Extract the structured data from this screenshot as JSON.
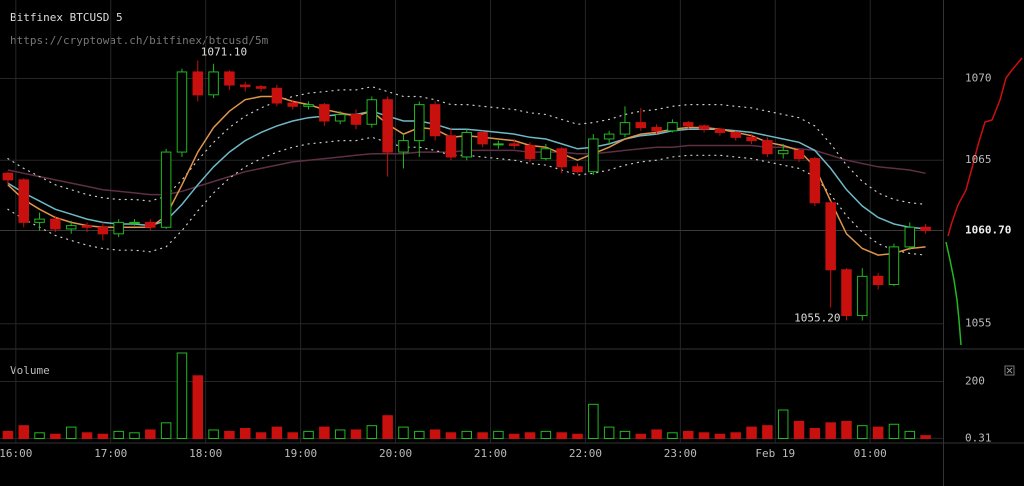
{
  "chart_data": {
    "type": "candlestick",
    "title": "Bitfinex BTCUSD 5",
    "subtitle": "https://cryptowat.ch/bitfinex/btcusd/5m",
    "x": [
      "15:55",
      "16:05",
      "16:15",
      "16:25",
      "16:35",
      "16:45",
      "16:55",
      "17:05",
      "17:15",
      "17:25",
      "17:35",
      "17:45",
      "17:55",
      "18:05",
      "18:15",
      "18:25",
      "18:35",
      "18:45",
      "18:55",
      "19:05",
      "19:15",
      "19:25",
      "19:35",
      "19:45",
      "19:55",
      "20:05",
      "20:15",
      "20:25",
      "20:35",
      "20:45",
      "20:55",
      "21:05",
      "21:15",
      "21:25",
      "21:35",
      "21:45",
      "21:55",
      "22:05",
      "22:15",
      "22:25",
      "22:35",
      "22:45",
      "22:55",
      "23:05",
      "23:15",
      "23:25",
      "23:35",
      "23:45",
      "23:55",
      "00:05",
      "00:15",
      "00:25",
      "00:35",
      "00:45",
      "00:55",
      "01:05",
      "01:15",
      "01:25",
      "01:35"
    ],
    "open": [
      1064.2,
      1063.8,
      1061.2,
      1061.4,
      1060.8,
      1061.0,
      1060.9,
      1060.5,
      1061.2,
      1061.2,
      1060.9,
      1065.5,
      1070.4,
      1069.0,
      1070.4,
      1069.6,
      1069.5,
      1069.4,
      1068.5,
      1068.3,
      1068.4,
      1067.4,
      1067.8,
      1067.2,
      1068.7,
      1065.5,
      1066.2,
      1068.4,
      1066.5,
      1065.2,
      1066.7,
      1066.0,
      1066.0,
      1065.9,
      1065.1,
      1065.7,
      1064.6,
      1064.3,
      1066.3,
      1066.6,
      1067.3,
      1067.0,
      1066.8,
      1067.3,
      1067.1,
      1066.9,
      1066.7,
      1066.4,
      1066.2,
      1065.4,
      1065.6,
      1065.1,
      1062.4,
      1058.3,
      1055.5,
      1057.9,
      1057.4,
      1059.7,
      1060.9
    ],
    "high": [
      1064.3,
      1063.9,
      1061.8,
      1061.6,
      1061.3,
      1061.2,
      1061.2,
      1061.4,
      1061.4,
      1061.4,
      1065.7,
      1070.6,
      1071.1,
      1070.9,
      1070.5,
      1069.8,
      1069.6,
      1069.6,
      1068.7,
      1068.6,
      1068.5,
      1068.0,
      1068.1,
      1068.9,
      1068.9,
      1066.6,
      1068.6,
      1068.6,
      1067.0,
      1066.9,
      1066.8,
      1066.2,
      1066.3,
      1066.1,
      1066.0,
      1065.8,
      1064.8,
      1066.6,
      1066.8,
      1068.3,
      1068.2,
      1067.2,
      1067.5,
      1067.4,
      1067.2,
      1067.0,
      1066.8,
      1066.6,
      1066.4,
      1066.0,
      1065.7,
      1065.2,
      1062.5,
      1058.4,
      1058.4,
      1058.1,
      1059.9,
      1061.2,
      1061.1
    ],
    "low": [
      1063.5,
      1060.9,
      1060.7,
      1060.6,
      1060.5,
      1060.6,
      1060.1,
      1060.3,
      1061.0,
      1060.7,
      1060.8,
      1065.2,
      1068.6,
      1068.8,
      1069.3,
      1069.2,
      1069.2,
      1068.3,
      1068.1,
      1068.1,
      1067.1,
      1067.2,
      1066.9,
      1067.0,
      1064.0,
      1064.5,
      1065.2,
      1066.2,
      1065.0,
      1065.0,
      1065.8,
      1065.7,
      1065.7,
      1064.9,
      1065.0,
      1064.2,
      1064.2,
      1064.1,
      1066.0,
      1066.4,
      1066.8,
      1066.6,
      1066.7,
      1066.9,
      1066.7,
      1066.5,
      1066.2,
      1066.0,
      1065.2,
      1065.1,
      1064.9,
      1062.2,
      1056.0,
      1055.2,
      1055.2,
      1057.1,
      1057.3,
      1059.5,
      1060.5
    ],
    "close": [
      1063.8,
      1061.2,
      1061.4,
      1060.8,
      1061.0,
      1060.9,
      1060.5,
      1061.2,
      1061.2,
      1060.9,
      1065.5,
      1070.4,
      1069.0,
      1070.4,
      1069.6,
      1069.5,
      1069.4,
      1068.5,
      1068.3,
      1068.4,
      1067.4,
      1067.8,
      1067.2,
      1068.7,
      1065.5,
      1066.2,
      1068.4,
      1066.5,
      1065.2,
      1066.7,
      1066.0,
      1066.0,
      1065.9,
      1065.1,
      1065.7,
      1064.6,
      1064.3,
      1066.3,
      1066.6,
      1067.3,
      1067.0,
      1066.8,
      1067.3,
      1067.1,
      1066.9,
      1066.7,
      1066.4,
      1066.2,
      1065.4,
      1065.6,
      1065.1,
      1062.4,
      1058.3,
      1055.5,
      1057.9,
      1057.4,
      1059.7,
      1060.9,
      1060.7
    ],
    "up_color": "#22b822",
    "down_color": "#c8110f",
    "indicators": [
      {
        "color": "#5e2f45",
        "style": "solid",
        "values": [
          1064.4,
          1064.2,
          1064.0,
          1063.8,
          1063.6,
          1063.4,
          1063.2,
          1063.1,
          1063.0,
          1062.9,
          1062.9,
          1063.1,
          1063.4,
          1063.7,
          1064.0,
          1064.3,
          1064.5,
          1064.7,
          1064.9,
          1065.0,
          1065.1,
          1065.2,
          1065.3,
          1065.4,
          1065.4,
          1065.4,
          1065.5,
          1065.5,
          1065.5,
          1065.6,
          1065.6,
          1065.6,
          1065.6,
          1065.5,
          1065.5,
          1065.5,
          1065.4,
          1065.4,
          1065.5,
          1065.6,
          1065.7,
          1065.8,
          1065.8,
          1065.9,
          1065.9,
          1065.9,
          1065.9,
          1065.9,
          1065.8,
          1065.8,
          1065.7,
          1065.6,
          1065.3,
          1065.0,
          1064.8,
          1064.6,
          1064.5,
          1064.4,
          1064.2
        ]
      },
      {
        "color": "#cccccc",
        "style": "dotted",
        "values": [
          1065.1,
          1064.5,
          1064.0,
          1063.5,
          1063.2,
          1062.9,
          1062.7,
          1062.6,
          1062.6,
          1062.5,
          1062.8,
          1063.8,
          1065.0,
          1066.1,
          1067.0,
          1067.7,
          1068.2,
          1068.6,
          1068.9,
          1069.1,
          1069.2,
          1069.3,
          1069.3,
          1069.5,
          1069.2,
          1068.9,
          1068.9,
          1068.7,
          1068.4,
          1068.4,
          1068.3,
          1068.2,
          1068.1,
          1067.9,
          1067.8,
          1067.5,
          1067.2,
          1067.3,
          1067.5,
          1067.8,
          1068.0,
          1068.1,
          1068.3,
          1068.4,
          1068.4,
          1068.4,
          1068.3,
          1068.2,
          1068.0,
          1067.8,
          1067.6,
          1067.1,
          1066.0,
          1064.7,
          1063.7,
          1063.0,
          1062.6,
          1062.4,
          1062.3
        ]
      },
      {
        "color": "#cccccc",
        "style": "dotted",
        "values": [
          1062.0,
          1061.4,
          1060.9,
          1060.4,
          1060.1,
          1059.8,
          1059.6,
          1059.5,
          1059.5,
          1059.4,
          1059.7,
          1060.7,
          1061.9,
          1063.0,
          1063.9,
          1064.6,
          1065.1,
          1065.5,
          1065.8,
          1066.0,
          1066.1,
          1066.2,
          1066.2,
          1066.4,
          1066.1,
          1065.8,
          1065.8,
          1065.6,
          1065.3,
          1065.3,
          1065.2,
          1065.1,
          1065.0,
          1064.8,
          1064.7,
          1064.4,
          1064.1,
          1064.2,
          1064.4,
          1064.7,
          1064.9,
          1065.0,
          1065.2,
          1065.3,
          1065.3,
          1065.3,
          1065.2,
          1065.1,
          1064.9,
          1064.7,
          1064.5,
          1064.0,
          1062.9,
          1061.6,
          1060.6,
          1059.9,
          1059.5,
          1059.3,
          1059.2
        ]
      },
      {
        "color": "#6fb8c6",
        "style": "solid",
        "values": [
          1063.6,
          1063.0,
          1062.5,
          1062.0,
          1061.7,
          1061.4,
          1061.2,
          1061.1,
          1061.1,
          1061.0,
          1061.3,
          1062.3,
          1063.5,
          1064.6,
          1065.5,
          1066.2,
          1066.7,
          1067.1,
          1067.4,
          1067.6,
          1067.7,
          1067.8,
          1067.8,
          1068.0,
          1067.7,
          1067.4,
          1067.4,
          1067.2,
          1066.9,
          1066.9,
          1066.8,
          1066.7,
          1066.6,
          1066.4,
          1066.3,
          1066.0,
          1065.7,
          1065.8,
          1066.0,
          1066.3,
          1066.5,
          1066.6,
          1066.8,
          1066.9,
          1066.9,
          1066.9,
          1066.8,
          1066.7,
          1066.5,
          1066.3,
          1066.1,
          1065.6,
          1064.5,
          1063.2,
          1062.2,
          1061.5,
          1061.1,
          1060.9,
          1060.8
        ]
      },
      {
        "color": "#e0954a",
        "style": "solid",
        "values": [
          1063.5,
          1062.6,
          1062.0,
          1061.5,
          1061.2,
          1061.0,
          1060.9,
          1060.9,
          1060.9,
          1060.9,
          1061.6,
          1063.5,
          1065.5,
          1067.0,
          1068.0,
          1068.7,
          1068.9,
          1068.9,
          1068.6,
          1068.4,
          1068.1,
          1067.9,
          1067.7,
          1068.0,
          1067.2,
          1066.6,
          1067.0,
          1066.9,
          1066.4,
          1066.5,
          1066.4,
          1066.3,
          1066.2,
          1065.9,
          1065.8,
          1065.4,
          1065.0,
          1065.4,
          1065.8,
          1066.3,
          1066.6,
          1066.7,
          1066.9,
          1067.0,
          1067.0,
          1066.9,
          1066.7,
          1066.5,
          1066.1,
          1065.9,
          1065.6,
          1064.6,
          1062.5,
          1060.5,
          1059.6,
          1059.2,
          1059.3,
          1059.6,
          1059.7
        ]
      }
    ],
    "annotations": [
      {
        "text": "1071.10",
        "x": "17:55",
        "y": 1071.1
      },
      {
        "text": "1055.20",
        "x": "00:45",
        "y": 1055.2
      }
    ],
    "last_price": {
      "value": 1060.7,
      "label": "1060.70"
    },
    "xlim": [
      "15:50",
      "01:46"
    ],
    "xticks": [
      "16:00",
      "17:00",
      "18:00",
      "19:00",
      "20:00",
      "21:00",
      "22:00",
      "23:00",
      {
        "value": "00:00",
        "label": "Feb 19"
      },
      "01:00"
    ],
    "ylim": [
      1053.7,
      1074.8
    ],
    "yticks": [
      1055,
      1065,
      1070
    ],
    "grid": true,
    "volume": {
      "title": "Volume",
      "values": [
        25,
        45,
        20,
        15,
        40,
        20,
        15,
        25,
        20,
        30,
        55,
        300,
        220,
        30,
        25,
        35,
        20,
        40,
        20,
        25,
        40,
        30,
        30,
        45,
        80,
        40,
        25,
        30,
        20,
        25,
        20,
        25,
        15,
        20,
        25,
        20,
        15,
        120,
        40,
        25,
        15,
        30,
        20,
        25,
        20,
        15,
        20,
        40,
        45,
        100,
        60,
        35,
        55,
        60,
        45,
        40,
        50,
        25,
        10
      ],
      "ylim": [
        0,
        300
      ],
      "yticks": [
        0.31,
        200
      ]
    }
  }
}
